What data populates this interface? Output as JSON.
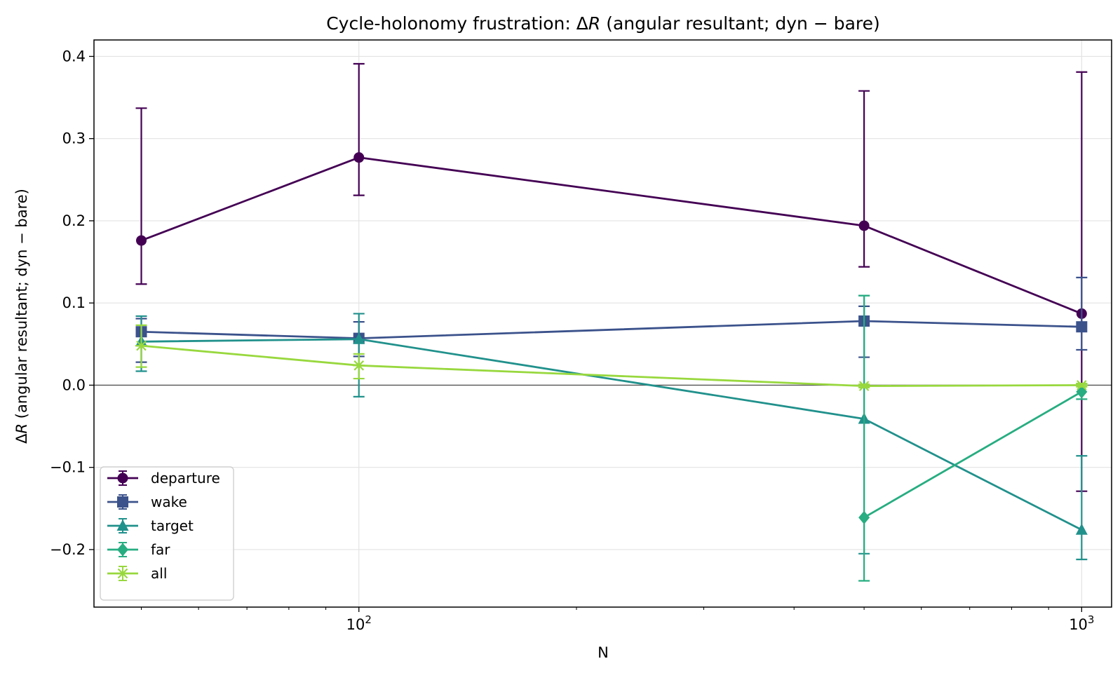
{
  "chart_data": {
    "type": "line",
    "title_parts": [
      "Cycle-holonomy frustration: Δ",
      "R",
      " (angular resultant; dyn − bare)"
    ],
    "xlabel": "N",
    "ylabel_parts": [
      "Δ",
      "R",
      " (angular resultant; dyn − bare)"
    ],
    "xscale": "log",
    "xlim": [
      43,
      1100
    ],
    "ylim": [
      -0.27,
      0.42
    ],
    "x_major_ticks": [
      {
        "value": 100,
        "base": "10",
        "exp": "2"
      },
      {
        "value": 1000,
        "base": "10",
        "exp": "3"
      }
    ],
    "x_minor_ticks": [
      50,
      60,
      70,
      80,
      90,
      200,
      300,
      400,
      500,
      600,
      700,
      800,
      900
    ],
    "y_ticks": [
      {
        "value": -0.2,
        "label": "−0.2"
      },
      {
        "value": -0.1,
        "label": "−0.1"
      },
      {
        "value": 0.0,
        "label": "0.0"
      },
      {
        "value": 0.1,
        "label": "0.1"
      },
      {
        "value": 0.2,
        "label": "0.2"
      },
      {
        "value": 0.3,
        "label": "0.3"
      },
      {
        "value": 0.4,
        "label": "0.4"
      }
    ],
    "grid": true,
    "zero_line": true,
    "legend_position": "lower-left",
    "series": [
      {
        "name": "departure",
        "color": "#440154",
        "marker": "circle",
        "x": [
          50,
          100,
          500,
          1000
        ],
        "y": [
          0.176,
          0.277,
          0.194,
          0.087
        ],
        "err_low": [
          0.123,
          0.231,
          0.144,
          -0.129
        ],
        "err_high": [
          0.337,
          0.391,
          0.358,
          0.381
        ]
      },
      {
        "name": "wake",
        "color": "#3b528b",
        "marker": "square",
        "x": [
          50,
          100,
          500,
          1000
        ],
        "y": [
          0.065,
          0.057,
          0.078,
          0.071
        ],
        "err_low": [
          0.028,
          0.035,
          0.034,
          0.043
        ],
        "err_high": [
          0.081,
          0.077,
          0.096,
          0.131
        ]
      },
      {
        "name": "target",
        "color": "#21918c",
        "marker": "triangle",
        "x": [
          50,
          100,
          500,
          1000
        ],
        "y": [
          0.053,
          0.056,
          -0.041,
          -0.176
        ],
        "err_low": [
          0.017,
          -0.014,
          -0.205,
          -0.212
        ],
        "err_high": [
          0.084,
          0.087,
          0.109,
          -0.086
        ]
      },
      {
        "name": "far",
        "color": "#27ad81",
        "marker": "diamond",
        "x": [
          500,
          1000
        ],
        "y": [
          -0.161,
          -0.008
        ],
        "err_low": [
          -0.238,
          -0.017
        ],
        "err_high": [
          0.109,
          0.002
        ]
      },
      {
        "name": "all",
        "color": "#98d83e",
        "marker": "x",
        "x": [
          50,
          100,
          500,
          1000
        ],
        "y": [
          0.048,
          0.024,
          -0.001,
          0.0
        ],
        "err_low": [
          0.022,
          0.008,
          -0.003,
          -0.002
        ],
        "err_high": [
          0.073,
          0.038,
          0.001,
          0.002
        ]
      }
    ]
  }
}
